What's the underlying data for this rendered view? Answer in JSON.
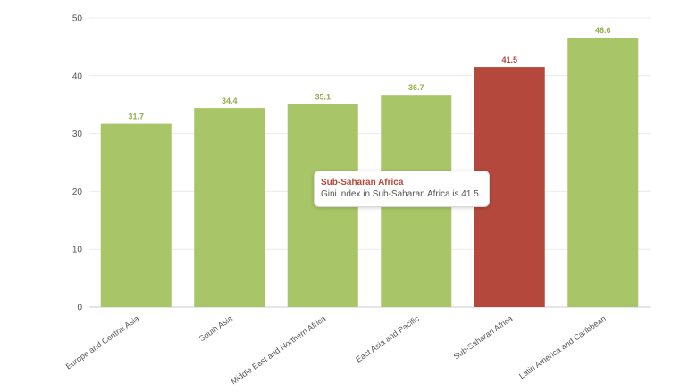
{
  "chart_data": {
    "type": "bar",
    "categories": [
      "Europe and Central Asia",
      "South Asia",
      "Middle East and Northern Africa",
      "East Asia and Pacific",
      "Sub-Saharan Africa",
      "Latin America and Caribbean"
    ],
    "values": [
      31.7,
      34.4,
      35.1,
      36.7,
      41.5,
      46.6
    ],
    "value_labels": [
      "31.7",
      "34.4",
      "35.1",
      "36.7",
      "41.5",
      "46.6"
    ],
    "ylim": [
      0,
      50
    ],
    "yticks": [
      "0",
      "10",
      "20",
      "30",
      "40",
      "50"
    ],
    "grid": true,
    "highlighted_index": 4,
    "colors": {
      "bar": "#a8c667",
      "highlight": "#b5483c",
      "label": "#8fb04a",
      "highlight_label": "#b5483c"
    }
  },
  "tooltip": {
    "title": "Sub-Saharan Africa",
    "body": "Gini index in Sub-Saharan Africa is 41.5."
  }
}
